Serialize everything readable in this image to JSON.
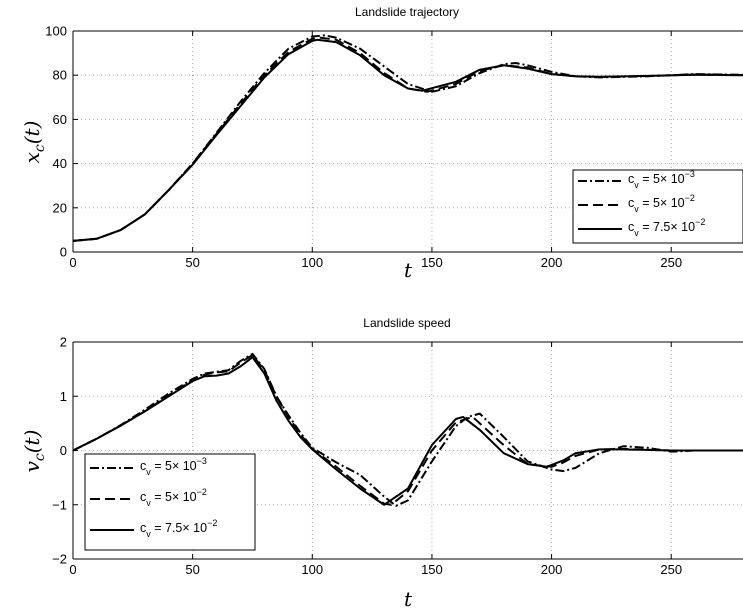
{
  "chart_data": [
    {
      "type": "line",
      "title": "Landslide trajectory",
      "xlabel": "t",
      "ylabel_main": "x",
      "ylabel_sub": "c",
      "ylabel_arg": "(t)",
      "xlim": [
        0,
        280
      ],
      "ylim": [
        0,
        100
      ],
      "xticks": [
        "0",
        "50",
        "100",
        "150",
        "200",
        "250"
      ],
      "yticks": [
        "0",
        "20",
        "40",
        "60",
        "80",
        "100"
      ],
      "grid": true,
      "legend_position": "right",
      "series": [
        {
          "name_pre": "c",
          "name_sub": "v",
          "name_mid": " = 5× 10",
          "name_sup": "−3",
          "style": "dashdot",
          "x": [
            0,
            10,
            20,
            30,
            40,
            50,
            60,
            70,
            80,
            90,
            100,
            105,
            110,
            120,
            130,
            140,
            150,
            160,
            170,
            180,
            185,
            190,
            200,
            210,
            220,
            240,
            260,
            280
          ],
          "y": [
            5,
            6,
            10,
            17,
            28,
            40,
            54,
            68,
            81,
            92,
            97.5,
            98,
            97,
            92,
            84,
            76,
            72.5,
            75,
            81,
            85,
            85.5,
            84.5,
            81.5,
            79.5,
            79,
            79.5,
            80.5,
            80.2
          ]
        },
        {
          "name_pre": "c",
          "name_sub": "v",
          "name_mid": " = 5× 10",
          "name_sup": "−2",
          "style": "dashed",
          "x": [
            0,
            10,
            20,
            30,
            40,
            50,
            60,
            70,
            80,
            90,
            100,
            103,
            110,
            120,
            130,
            140,
            148,
            160,
            170,
            180,
            190,
            200,
            210,
            220,
            240,
            260,
            280
          ],
          "y": [
            5,
            6,
            10,
            17,
            28,
            40,
            53.5,
            67,
            80,
            90.5,
            96.5,
            97,
            96,
            90,
            81,
            74,
            72.5,
            76,
            82,
            84.5,
            83.5,
            80.5,
            79.5,
            79.2,
            79.6,
            80.3,
            80.1
          ]
        },
        {
          "name_pre": "c",
          "name_sub": "v",
          "name_mid": " = 7.5× 10",
          "name_sup": "−2",
          "style": "solid",
          "x": [
            0,
            10,
            20,
            30,
            40,
            50,
            60,
            70,
            80,
            90,
            100,
            102,
            110,
            120,
            130,
            140,
            146,
            160,
            170,
            180,
            190,
            200,
            210,
            220,
            240,
            260,
            280
          ],
          "y": [
            5,
            6,
            10,
            17,
            28,
            39.5,
            53,
            66,
            79,
            89.5,
            95.5,
            96,
            95,
            89,
            80,
            74,
            73,
            77,
            82.5,
            84.5,
            83,
            80.5,
            79.5,
            79.3,
            79.7,
            80.2,
            80
          ]
        }
      ]
    },
    {
      "type": "line",
      "title": "Landslide speed",
      "xlabel": "t",
      "ylabel_main": "v",
      "ylabel_sub": "c",
      "ylabel_arg": "(t)",
      "xlim": [
        0,
        280
      ],
      "ylim": [
        -2,
        2
      ],
      "xticks": [
        "0",
        "50",
        "100",
        "150",
        "200",
        "250"
      ],
      "yticks": [
        "−2",
        "−1",
        "0",
        "1",
        "2"
      ],
      "grid": true,
      "legend_position": "bottom-left",
      "series": [
        {
          "name_pre": "c",
          "name_sub": "v",
          "name_mid": " = 5× 10",
          "name_sup": "−3",
          "style": "dashdot",
          "x": [
            0,
            10,
            20,
            30,
            40,
            50,
            55,
            60,
            65,
            70,
            75,
            80,
            85,
            90,
            95,
            100,
            110,
            120,
            130,
            135,
            140,
            150,
            160,
            165,
            170,
            180,
            190,
            200,
            205,
            210,
            220,
            230,
            240,
            250,
            260,
            280
          ],
          "y": [
            0,
            0.22,
            0.47,
            0.75,
            1.05,
            1.32,
            1.42,
            1.45,
            1.48,
            1.65,
            1.78,
            1.5,
            1.0,
            0.65,
            0.33,
            0.05,
            -0.22,
            -0.45,
            -0.85,
            -1.02,
            -0.92,
            -0.2,
            0.45,
            0.62,
            0.68,
            0.25,
            -0.2,
            -0.35,
            -0.38,
            -0.32,
            -0.05,
            0.08,
            0.05,
            -0.02,
            0,
            0
          ]
        },
        {
          "name_pre": "c",
          "name_sub": "v",
          "name_mid": " = 5× 10",
          "name_sup": "−2",
          "style": "dashed",
          "x": [
            0,
            10,
            20,
            30,
            40,
            50,
            55,
            60,
            65,
            70,
            75,
            80,
            85,
            90,
            95,
            100,
            110,
            120,
            130,
            133,
            140,
            150,
            160,
            167,
            180,
            190,
            200,
            205,
            210,
            220,
            230,
            250,
            280
          ],
          "y": [
            0,
            0.22,
            0.46,
            0.72,
            1.02,
            1.3,
            1.4,
            1.44,
            1.46,
            1.62,
            1.76,
            1.48,
            1.0,
            0.62,
            0.3,
            0.03,
            -0.3,
            -0.65,
            -0.98,
            -1.0,
            -0.75,
            0.0,
            0.52,
            0.62,
            0.1,
            -0.25,
            -0.3,
            -0.22,
            -0.1,
            0.02,
            0.03,
            0,
            0
          ]
        },
        {
          "name_pre": "c",
          "name_sub": "v",
          "name_mid": " = 7.5× 10",
          "name_sup": "−2",
          "style": "solid",
          "x": [
            0,
            10,
            20,
            30,
            40,
            50,
            55,
            60,
            65,
            70,
            75,
            80,
            85,
            90,
            95,
            100,
            110,
            120,
            130,
            140,
            150,
            160,
            163,
            170,
            180,
            190,
            198,
            205,
            210,
            220,
            230,
            250,
            280
          ],
          "y": [
            0,
            0.22,
            0.46,
            0.72,
            1.0,
            1.28,
            1.37,
            1.38,
            1.42,
            1.55,
            1.72,
            1.42,
            0.92,
            0.55,
            0.25,
            0.02,
            -0.35,
            -0.7,
            -1.0,
            -0.7,
            0.1,
            0.58,
            0.62,
            0.38,
            -0.05,
            -0.25,
            -0.3,
            -0.18,
            -0.05,
            0.02,
            0.02,
            0,
            0
          ]
        }
      ]
    }
  ]
}
